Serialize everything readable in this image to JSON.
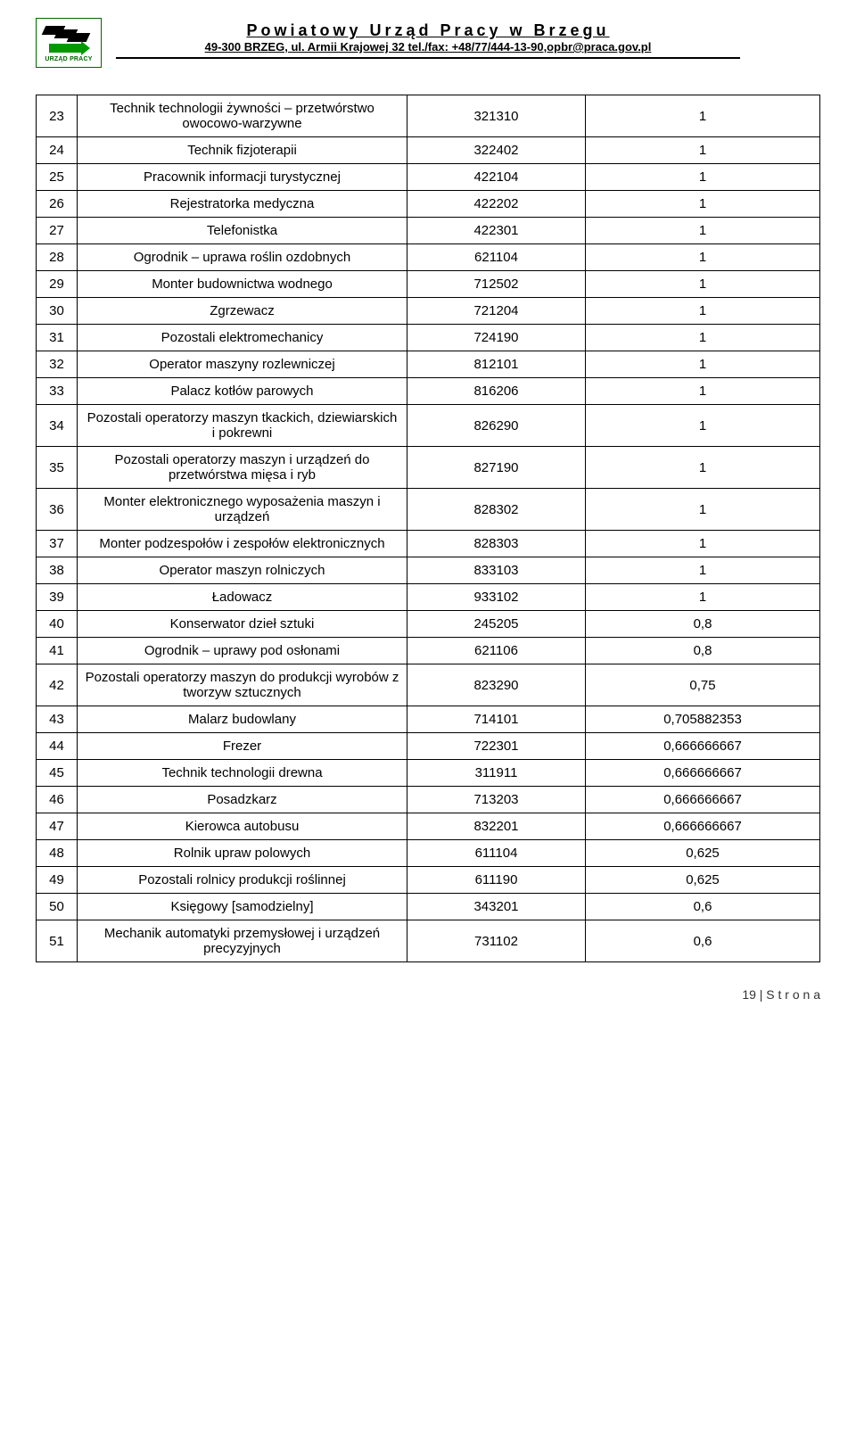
{
  "header": {
    "title": "Powiatowy Urząd Pracy w Brzegu",
    "sub": "49-300 BRZEG, ul. Armii Krajowej 32 tel./fax: +48/77/444-13-90,opbr@praca.gov.pl",
    "logo_label": "URZĄD PRACY"
  },
  "rows": [
    {
      "n": "23",
      "name": "Technik technologii żywności – przetwórstwo owocowo-warzywne",
      "code": "321310",
      "val": "1"
    },
    {
      "n": "24",
      "name": "Technik fizjoterapii",
      "code": "322402",
      "val": "1"
    },
    {
      "n": "25",
      "name": "Pracownik informacji turystycznej",
      "code": "422104",
      "val": "1"
    },
    {
      "n": "26",
      "name": "Rejestratorka medyczna",
      "code": "422202",
      "val": "1"
    },
    {
      "n": "27",
      "name": "Telefonistka",
      "code": "422301",
      "val": "1"
    },
    {
      "n": "28",
      "name": "Ogrodnik – uprawa roślin ozdobnych",
      "code": "621104",
      "val": "1"
    },
    {
      "n": "29",
      "name": "Monter budownictwa wodnego",
      "code": "712502",
      "val": "1"
    },
    {
      "n": "30",
      "name": "Zgrzewacz",
      "code": "721204",
      "val": "1"
    },
    {
      "n": "31",
      "name": "Pozostali elektromechanicy",
      "code": "724190",
      "val": "1"
    },
    {
      "n": "32",
      "name": "Operator maszyny rozlewniczej",
      "code": "812101",
      "val": "1"
    },
    {
      "n": "33",
      "name": "Palacz kotłów parowych",
      "code": "816206",
      "val": "1"
    },
    {
      "n": "34",
      "name": "Pozostali operatorzy maszyn tkackich, dziewiarskich i pokrewni",
      "code": "826290",
      "val": "1"
    },
    {
      "n": "35",
      "name": "Pozostali operatorzy maszyn i urządzeń do przetwórstwa mięsa i ryb",
      "code": "827190",
      "val": "1"
    },
    {
      "n": "36",
      "name": "Monter elektronicznego wyposażenia maszyn i urządzeń",
      "code": "828302",
      "val": "1"
    },
    {
      "n": "37",
      "name": "Monter podzespołów i zespołów elektronicznych",
      "code": "828303",
      "val": "1"
    },
    {
      "n": "38",
      "name": "Operator maszyn rolniczych",
      "code": "833103",
      "val": "1"
    },
    {
      "n": "39",
      "name": "Ładowacz",
      "code": "933102",
      "val": "1"
    },
    {
      "n": "40",
      "name": "Konserwator dzieł sztuki",
      "code": "245205",
      "val": "0,8"
    },
    {
      "n": "41",
      "name": "Ogrodnik – uprawy pod osłonami",
      "code": "621106",
      "val": "0,8"
    },
    {
      "n": "42",
      "name": "Pozostali operatorzy maszyn do produkcji wyrobów z tworzyw sztucznych",
      "code": "823290",
      "val": "0,75"
    },
    {
      "n": "43",
      "name": "Malarz budowlany",
      "code": "714101",
      "val": "0,705882353"
    },
    {
      "n": "44",
      "name": "Frezer",
      "code": "722301",
      "val": "0,666666667"
    },
    {
      "n": "45",
      "name": "Technik technologii drewna",
      "code": "311911",
      "val": "0,666666667"
    },
    {
      "n": "46",
      "name": "Posadzkarz",
      "code": "713203",
      "val": "0,666666667"
    },
    {
      "n": "47",
      "name": "Kierowca autobusu",
      "code": "832201",
      "val": "0,666666667"
    },
    {
      "n": "48",
      "name": "Rolnik upraw polowych",
      "code": "611104",
      "val": "0,625"
    },
    {
      "n": "49",
      "name": "Pozostali rolnicy produkcji roślinnej",
      "code": "611190",
      "val": "0,625"
    },
    {
      "n": "50",
      "name": "Księgowy [samodzielny]",
      "code": "343201",
      "val": "0,6"
    },
    {
      "n": "51",
      "name": "Mechanik automatyki przemysłowej i urządzeń precyzyjnych",
      "code": "731102",
      "val": "0,6"
    }
  ],
  "footer": "19 | S t r o n a"
}
